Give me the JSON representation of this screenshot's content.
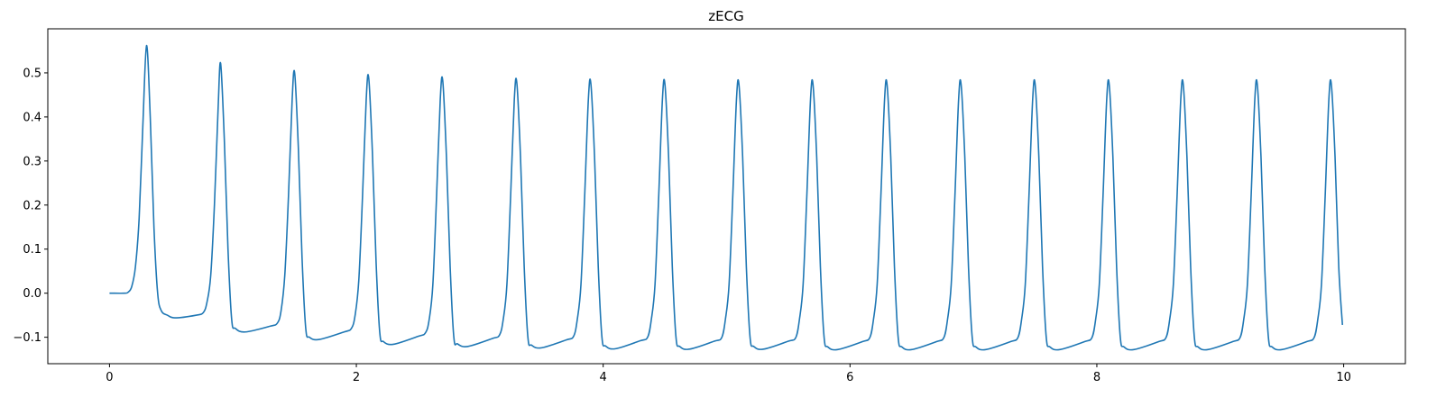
{
  "chart_data": {
    "type": "line",
    "title": "zECG",
    "xlabel": "",
    "ylabel": "",
    "xlim": [
      -0.5,
      10.5
    ],
    "ylim": [
      -0.16,
      0.6
    ],
    "x_ticks": [
      0,
      2,
      4,
      6,
      8,
      10
    ],
    "x_tick_labels": [
      "0",
      "2",
      "4",
      "6",
      "8",
      "10"
    ],
    "y_ticks": [
      -0.1,
      0.0,
      0.1,
      0.2,
      0.3,
      0.4,
      0.5
    ],
    "y_tick_labels": [
      "−0.1",
      "0.0",
      "0.1",
      "0.2",
      "0.3",
      "0.4",
      "0.5"
    ],
    "grid": false,
    "series": [
      {
        "color": "#1f77b4",
        "points": [
          [
            0.0,
            0.0
          ],
          [
            0.12,
            0.0
          ],
          [
            0.15,
            0.002
          ],
          [
            0.18,
            0.015
          ],
          [
            0.21,
            0.06
          ],
          [
            0.24,
            0.17
          ],
          [
            0.27,
            0.38
          ],
          [
            0.3,
            0.562
          ],
          [
            0.33,
            0.4
          ],
          [
            0.36,
            0.15
          ],
          [
            0.39,
            0.0
          ],
          [
            0.42,
            -0.04
          ],
          [
            0.47,
            -0.05
          ],
          [
            0.53,
            -0.056
          ],
          [
            0.7,
            -0.05
          ],
          [
            0.76,
            -0.044
          ],
          [
            0.79,
            -0.02
          ],
          [
            0.82,
            0.04
          ],
          [
            0.85,
            0.2
          ],
          [
            0.88,
            0.42
          ],
          [
            0.9,
            0.522
          ],
          [
            0.93,
            0.35
          ],
          [
            0.96,
            0.1
          ],
          [
            0.99,
            -0.06
          ],
          [
            1.02,
            -0.08
          ],
          [
            1.1,
            -0.088
          ],
          [
            1.3,
            -0.075
          ],
          [
            1.36,
            -0.068
          ],
          [
            1.39,
            -0.04
          ],
          [
            1.42,
            0.04
          ],
          [
            1.45,
            0.22
          ],
          [
            1.48,
            0.44
          ],
          [
            1.5,
            0.5
          ],
          [
            1.53,
            0.33
          ],
          [
            1.56,
            0.08
          ],
          [
            1.59,
            -0.08
          ],
          [
            1.62,
            -0.1
          ],
          [
            1.7,
            -0.105
          ],
          [
            1.9,
            -0.088
          ],
          [
            1.96,
            -0.08
          ],
          [
            1.99,
            -0.05
          ],
          [
            2.02,
            0.03
          ],
          [
            2.05,
            0.22
          ],
          [
            2.08,
            0.44
          ],
          [
            2.1,
            0.489
          ],
          [
            2.13,
            0.32
          ],
          [
            2.16,
            0.07
          ],
          [
            2.19,
            -0.09
          ],
          [
            2.22,
            -0.11
          ],
          [
            2.3,
            -0.116
          ],
          [
            2.5,
            -0.098
          ],
          [
            2.56,
            -0.09
          ],
          [
            2.59,
            -0.06
          ],
          [
            2.62,
            0.02
          ],
          [
            2.65,
            0.22
          ],
          [
            2.68,
            0.44
          ],
          [
            2.7,
            0.482
          ],
          [
            2.73,
            0.31
          ],
          [
            2.76,
            0.06
          ],
          [
            2.79,
            -0.1
          ],
          [
            2.82,
            -0.115
          ],
          [
            2.9,
            -0.121
          ],
          [
            3.1,
            -0.103
          ],
          [
            3.16,
            -0.095
          ],
          [
            3.19,
            -0.06
          ],
          [
            3.22,
            0.02
          ],
          [
            3.25,
            0.22
          ],
          [
            3.28,
            0.44
          ],
          [
            3.3,
            0.478
          ],
          [
            3.33,
            0.31
          ],
          [
            3.36,
            0.06
          ],
          [
            3.39,
            -0.1
          ],
          [
            3.42,
            -0.118
          ],
          [
            3.5,
            -0.124
          ],
          [
            3.7,
            -0.106
          ],
          [
            3.76,
            -0.098
          ],
          [
            3.79,
            -0.06
          ],
          [
            3.82,
            0.02
          ],
          [
            3.85,
            0.22
          ],
          [
            3.88,
            0.44
          ],
          [
            3.9,
            0.476
          ],
          [
            3.93,
            0.31
          ],
          [
            3.96,
            0.06
          ],
          [
            3.99,
            -0.1
          ],
          [
            4.02,
            -0.12
          ],
          [
            4.1,
            -0.126
          ],
          [
            4.3,
            -0.108
          ],
          [
            4.36,
            -0.1
          ],
          [
            4.39,
            -0.06
          ],
          [
            4.42,
            0.02
          ],
          [
            4.45,
            0.22
          ],
          [
            4.48,
            0.44
          ],
          [
            4.5,
            0.475
          ],
          [
            4.53,
            0.31
          ],
          [
            4.56,
            0.06
          ],
          [
            4.59,
            -0.1
          ],
          [
            4.62,
            -0.121
          ],
          [
            4.7,
            -0.127
          ],
          [
            4.9,
            -0.109
          ],
          [
            4.96,
            -0.101
          ],
          [
            4.99,
            -0.06
          ],
          [
            5.02,
            0.02
          ],
          [
            5.05,
            0.22
          ],
          [
            5.08,
            0.44
          ],
          [
            5.1,
            0.474
          ],
          [
            5.13,
            0.31
          ],
          [
            5.16,
            0.06
          ],
          [
            5.19,
            -0.1
          ],
          [
            5.22,
            -0.121
          ],
          [
            5.3,
            -0.127
          ],
          [
            5.5,
            -0.109
          ],
          [
            5.56,
            -0.101
          ],
          [
            5.59,
            -0.06
          ],
          [
            5.62,
            0.02
          ],
          [
            5.65,
            0.22
          ],
          [
            5.68,
            0.44
          ],
          [
            5.7,
            0.474
          ],
          [
            5.73,
            0.31
          ],
          [
            5.76,
            0.06
          ],
          [
            5.79,
            -0.1
          ],
          [
            5.82,
            -0.122
          ],
          [
            5.9,
            -0.128
          ],
          [
            6.1,
            -0.11
          ],
          [
            6.16,
            -0.101
          ],
          [
            6.19,
            -0.06
          ],
          [
            6.22,
            0.02
          ],
          [
            6.25,
            0.22
          ],
          [
            6.28,
            0.44
          ],
          [
            6.3,
            0.474
          ],
          [
            6.33,
            0.31
          ],
          [
            6.36,
            0.06
          ],
          [
            6.39,
            -0.1
          ],
          [
            6.42,
            -0.122
          ],
          [
            6.5,
            -0.128
          ],
          [
            6.7,
            -0.11
          ],
          [
            6.76,
            -0.101
          ],
          [
            6.79,
            -0.06
          ],
          [
            6.82,
            0.02
          ],
          [
            6.85,
            0.22
          ],
          [
            6.88,
            0.44
          ],
          [
            6.9,
            0.474
          ],
          [
            6.93,
            0.31
          ],
          [
            6.96,
            0.06
          ],
          [
            6.99,
            -0.1
          ],
          [
            7.02,
            -0.122
          ],
          [
            7.1,
            -0.128
          ],
          [
            7.3,
            -0.11
          ],
          [
            7.36,
            -0.101
          ],
          [
            7.39,
            -0.06
          ],
          [
            7.42,
            0.02
          ],
          [
            7.45,
            0.22
          ],
          [
            7.48,
            0.44
          ],
          [
            7.5,
            0.474
          ],
          [
            7.53,
            0.31
          ],
          [
            7.56,
            0.06
          ],
          [
            7.59,
            -0.1
          ],
          [
            7.62,
            -0.122
          ],
          [
            7.7,
            -0.128
          ],
          [
            7.9,
            -0.11
          ],
          [
            7.96,
            -0.101
          ],
          [
            7.99,
            -0.06
          ],
          [
            8.02,
            0.02
          ],
          [
            8.05,
            0.22
          ],
          [
            8.08,
            0.44
          ],
          [
            8.1,
            0.474
          ],
          [
            8.13,
            0.31
          ],
          [
            8.16,
            0.06
          ],
          [
            8.19,
            -0.1
          ],
          [
            8.22,
            -0.122
          ],
          [
            8.3,
            -0.128
          ],
          [
            8.5,
            -0.11
          ],
          [
            8.56,
            -0.101
          ],
          [
            8.59,
            -0.06
          ],
          [
            8.62,
            0.02
          ],
          [
            8.65,
            0.22
          ],
          [
            8.68,
            0.44
          ],
          [
            8.7,
            0.474
          ],
          [
            8.73,
            0.31
          ],
          [
            8.76,
            0.06
          ],
          [
            8.79,
            -0.1
          ],
          [
            8.82,
            -0.122
          ],
          [
            8.9,
            -0.128
          ],
          [
            9.1,
            -0.11
          ],
          [
            9.16,
            -0.101
          ],
          [
            9.19,
            -0.06
          ],
          [
            9.22,
            0.02
          ],
          [
            9.25,
            0.22
          ],
          [
            9.28,
            0.44
          ],
          [
            9.3,
            0.474
          ],
          [
            9.33,
            0.31
          ],
          [
            9.36,
            0.06
          ],
          [
            9.39,
            -0.1
          ],
          [
            9.42,
            -0.122
          ],
          [
            9.5,
            -0.128
          ],
          [
            9.7,
            -0.11
          ],
          [
            9.76,
            -0.101
          ],
          [
            9.79,
            -0.06
          ],
          [
            9.82,
            0.02
          ],
          [
            9.85,
            0.22
          ],
          [
            9.88,
            0.44
          ],
          [
            9.9,
            0.474
          ],
          [
            9.93,
            0.31
          ],
          [
            9.96,
            0.06
          ],
          [
            9.99,
            -0.072
          ]
        ]
      }
    ]
  }
}
